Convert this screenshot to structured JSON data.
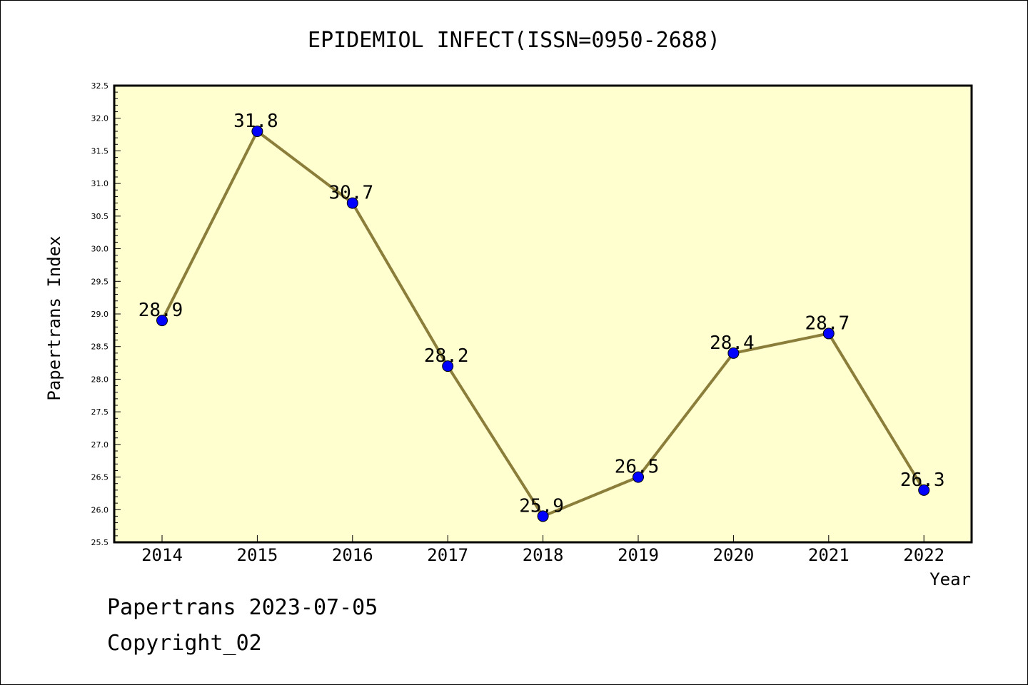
{
  "chart_data": {
    "type": "line",
    "title": "EPIDEMIOL INFECT(ISSN=0950-2688)",
    "xlabel": "Year",
    "ylabel": "Papertrans Index",
    "categories": [
      "2014",
      "2015",
      "2016",
      "2017",
      "2018",
      "2019",
      "2020",
      "2021",
      "2022"
    ],
    "values": [
      28.9,
      31.8,
      30.7,
      28.2,
      25.9,
      26.5,
      28.4,
      28.7,
      26.3
    ],
    "data_labels": [
      "28.9",
      "31.8",
      "30.7",
      "28.2",
      "25.9",
      "26.5",
      "28.4",
      "28.7",
      "26.3"
    ],
    "ylim": [
      25.5,
      32.5
    ],
    "yticks": [
      "25.5",
      "26.0",
      "26.5",
      "27.0",
      "27.5",
      "28.0",
      "28.5",
      "29.0",
      "29.5",
      "30.0",
      "30.5",
      "31.0",
      "31.5",
      "32.0",
      "32.5"
    ],
    "grid": false,
    "colors": {
      "line": "#8b7d3a",
      "marker": "#0000ff",
      "plot_bg": "#ffffd0"
    }
  },
  "footer": {
    "date_line": "Papertrans 2023-07-05",
    "copyright": "Copyright_02"
  }
}
